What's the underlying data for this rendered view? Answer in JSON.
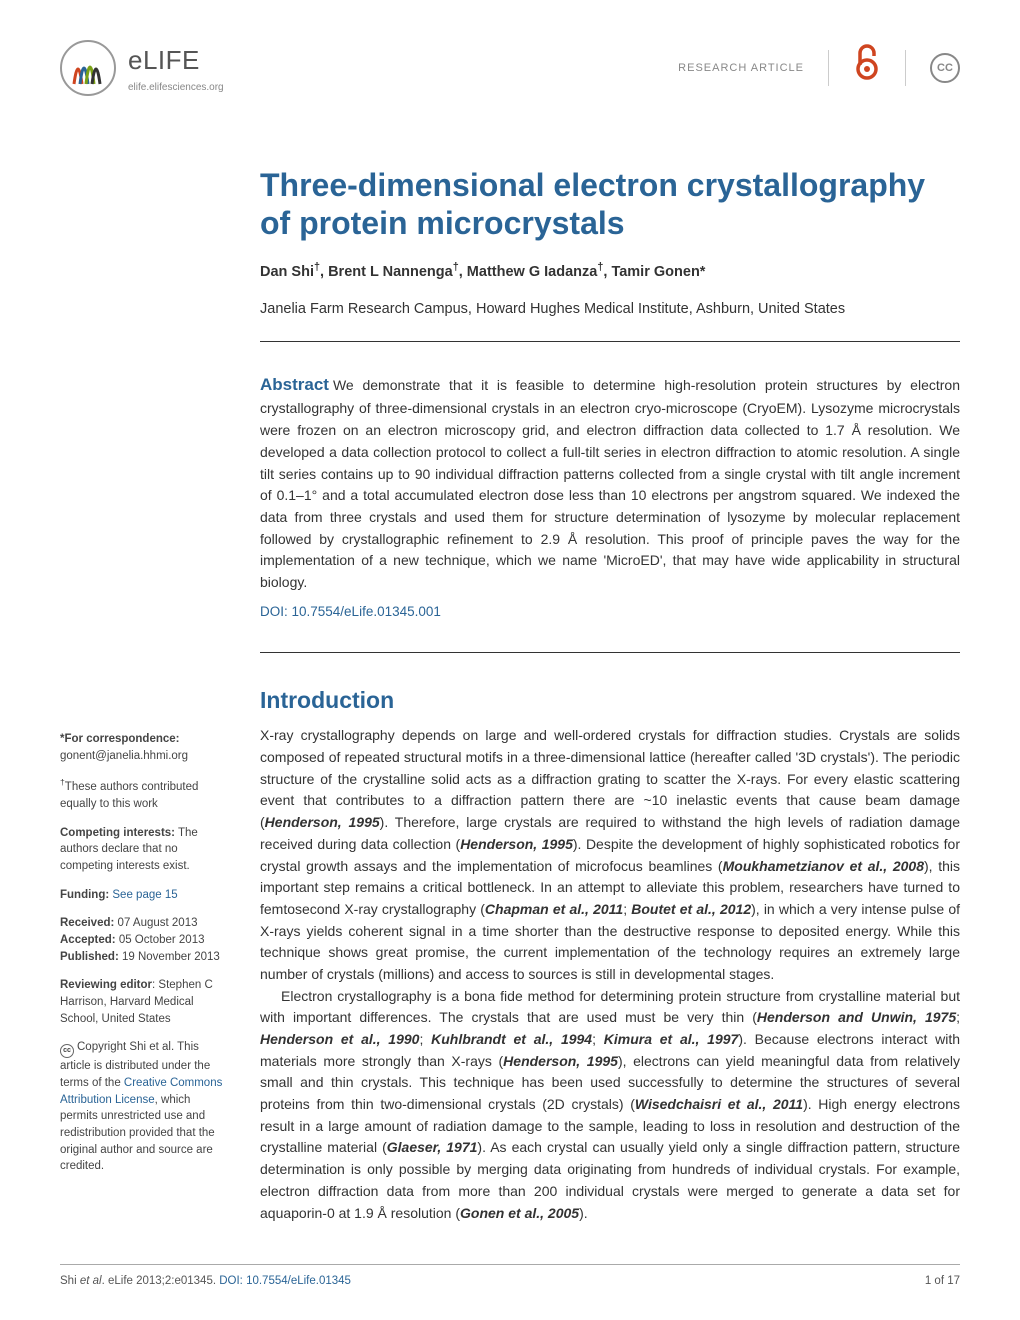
{
  "header": {
    "journal_name": "eLIFE",
    "journal_url": "elife.elifesciences.org",
    "article_type": "RESEARCH ARTICLE",
    "cc_label": "CC"
  },
  "article": {
    "title": "Three-dimensional electron crystallography of protein microcrystals",
    "authors_html": "Dan Shi<sup>†</sup>, Brent L Nannenga<sup>†</sup>, Matthew G Iadanza<sup>†</sup>, Tamir Gonen*",
    "affiliation": "Janelia Farm Research Campus, Howard Hughes Medical Institute, Ashburn, United States",
    "abstract_label": "Abstract",
    "abstract_text": "We demonstrate that it is feasible to determine high-resolution protein structures by electron crystallography of three-dimensional crystals in an electron cryo-microscope (CryoEM). Lysozyme microcrystals were frozen on an electron microscopy grid, and electron diffraction data collected to 1.7 Å resolution. We developed a data collection protocol to collect a full-tilt series in electron diffraction to atomic resolution. A single tilt series contains up to 90 individual diffraction patterns collected from a single crystal with tilt angle increment of 0.1–1° and a total accumulated electron dose less than 10 electrons per angstrom squared. We indexed the data from three crystals and used them for structure determination of lysozyme by molecular replacement followed by crystallographic refinement to 2.9 Å resolution. This proof of principle paves the way for the implementation of a new technique, which we name 'MicroED', that may have wide applicability in structural biology.",
    "doi": "DOI: 10.7554/eLife.01345.001",
    "intro_head": "Introduction"
  },
  "sidebar": {
    "correspondence_label": "*For correspondence:",
    "correspondence_value": "gonent@janelia.hhmi.org",
    "equal_contrib": "†These authors contributed equally to this work",
    "competing_label": "Competing interests:",
    "competing_text": "The authors declare that no competing interests exist.",
    "funding_label": "Funding:",
    "funding_link": "See page 15",
    "received_label": "Received:",
    "received_date": "07 August 2013",
    "accepted_label": "Accepted:",
    "accepted_date": "05 October 2013",
    "published_label": "Published:",
    "published_date": "19 November 2013",
    "reviewing_label": "Reviewing editor",
    "reviewing_text": ": Stephen C Harrison, Harvard Medical School, United States",
    "copyright_prefix": "Copyright Shi et al. This article is distributed under the terms of the ",
    "copyright_link": "Creative Commons Attribution License",
    "copyright_suffix": ", which permits unrestricted use and redistribution provided that the original author and source are credited."
  },
  "footer": {
    "citation_prefix": "Shi et al. eLife 2013;2:e01345. ",
    "citation_doi": "DOI: 10.7554/eLife.01345",
    "page_num": "1 of 17"
  },
  "colors": {
    "link": "#2a6496",
    "accent": "#cf4520"
  }
}
